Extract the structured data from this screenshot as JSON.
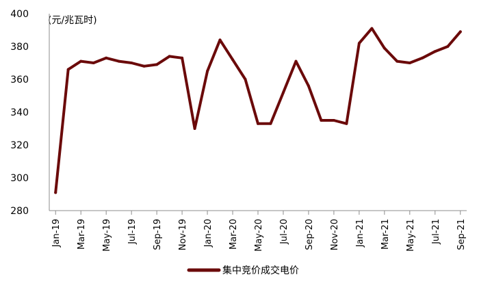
{
  "chart_data": {
    "type": "line",
    "unit_label": "(元/兆瓦时)",
    "ylim": [
      280,
      400
    ],
    "yticks": [
      280,
      300,
      320,
      340,
      360,
      380,
      400
    ],
    "x": [
      "Jan-19",
      "Feb-19",
      "Mar-19",
      "Apr-19",
      "May-19",
      "Jun-19",
      "Jul-19",
      "Aug-19",
      "Sep-19",
      "Oct-19",
      "Nov-19",
      "Dec-19",
      "Jan-20",
      "Feb-20",
      "Mar-20",
      "Apr-20",
      "May-20",
      "Jun-20",
      "Jul-20",
      "Aug-20",
      "Sep-20",
      "Oct-20",
      "Nov-20",
      "Dec-20",
      "Jan-21",
      "Feb-21",
      "Mar-21",
      "Apr-21",
      "May-21",
      "Jun-21",
      "Jul-21",
      "Aug-21",
      "Sep-21"
    ],
    "xtick_labels": [
      "Jan-19",
      "Mar-19",
      "May-19",
      "Jul-19",
      "Sep-19",
      "Nov-19",
      "Jan-20",
      "Mar-20",
      "May-20",
      "Jul-20",
      "Sep-20",
      "Nov-20",
      "Jan-21",
      "Mar-21",
      "May-21",
      "Jul-21",
      "Sep-21"
    ],
    "series": [
      {
        "name": "集中竞价成交电价",
        "color": "#6b0a0a",
        "values": [
          291,
          366,
          371,
          370,
          373,
          371,
          370,
          368,
          369,
          374,
          373,
          330,
          365,
          384,
          372,
          360,
          333,
          333,
          352,
          371,
          356,
          335,
          335,
          333,
          382,
          391,
          379,
          371,
          370,
          373,
          377,
          380,
          389
        ]
      }
    ],
    "legend_position": "bottom",
    "grid": false
  }
}
